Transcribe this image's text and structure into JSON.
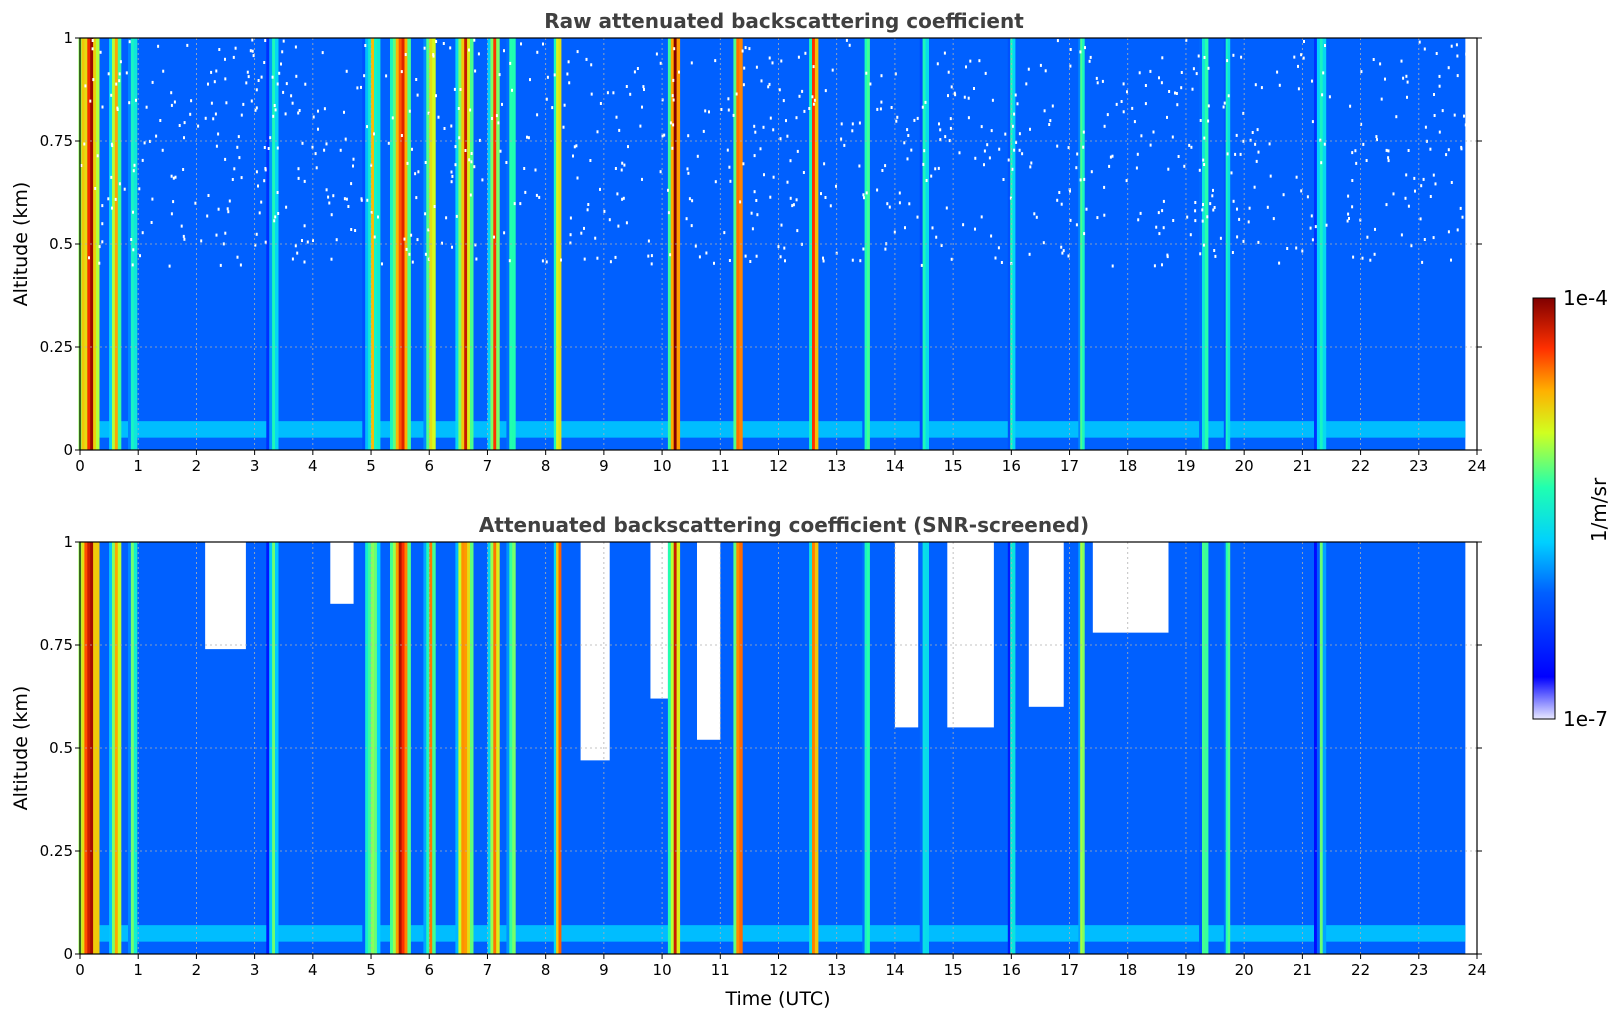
{
  "chart_data": [
    {
      "type": "heatmap",
      "title": "Raw attenuated backscattering coefficient",
      "xlabel": "",
      "ylabel": "Altitude (km)",
      "xlim": [
        0,
        24
      ],
      "ylim": [
        0,
        1
      ],
      "x_ticks": [
        "0",
        "1",
        "2",
        "3",
        "4",
        "5",
        "6",
        "7",
        "8",
        "9",
        "10",
        "11",
        "12",
        "13",
        "14",
        "15",
        "16",
        "17",
        "18",
        "19",
        "20",
        "21",
        "22",
        "23",
        "24"
      ],
      "y_ticks": [
        "0",
        "0.25",
        "0.5",
        "0.75",
        "1"
      ],
      "grid": true,
      "data_end_time": 23.8,
      "colorscale": "jet",
      "background_log10": -6.1,
      "cloud_columns": [
        {
          "t": 0.15,
          "w": 0.35,
          "v": -4.1
        },
        {
          "t": 0.6,
          "w": 0.2,
          "v": -4.5
        },
        {
          "t": 0.9,
          "w": 0.15,
          "v": -5.0
        },
        {
          "t": 3.3,
          "w": 0.2,
          "v": -5.2
        },
        {
          "t": 5.0,
          "w": 0.3,
          "v": -4.9
        },
        {
          "t": 5.5,
          "w": 0.35,
          "v": -4.2
        },
        {
          "t": 6.0,
          "w": 0.2,
          "v": -4.6
        },
        {
          "t": 6.6,
          "w": 0.3,
          "v": -4.4
        },
        {
          "t": 7.1,
          "w": 0.2,
          "v": -4.5
        },
        {
          "t": 7.4,
          "w": 0.15,
          "v": -4.8
        },
        {
          "t": 8.2,
          "w": 0.12,
          "v": -4.3
        },
        {
          "t": 10.2,
          "w": 0.2,
          "v": -4.2
        },
        {
          "t": 11.3,
          "w": 0.15,
          "v": -4.2
        },
        {
          "t": 12.6,
          "w": 0.15,
          "v": -4.2
        },
        {
          "t": 13.5,
          "w": 0.12,
          "v": -4.8
        },
        {
          "t": 14.5,
          "w": 0.15,
          "v": -5.1
        },
        {
          "t": 16.0,
          "w": 0.12,
          "v": -5.2
        },
        {
          "t": 17.2,
          "w": 0.1,
          "v": -4.8
        },
        {
          "t": 19.3,
          "w": 0.15,
          "v": -5.1
        },
        {
          "t": 19.7,
          "w": 0.1,
          "v": -5.0
        },
        {
          "t": 21.3,
          "w": 0.2,
          "v": -5.3
        }
      ]
    },
    {
      "type": "heatmap",
      "title": "Attenuated backscattering coefficient (SNR-screened)",
      "xlabel": "Time (UTC)",
      "ylabel": "Altitude (km)",
      "xlim": [
        0,
        24
      ],
      "ylim": [
        0,
        1
      ],
      "x_ticks": [
        "0",
        "1",
        "2",
        "3",
        "4",
        "5",
        "6",
        "7",
        "8",
        "9",
        "10",
        "11",
        "12",
        "13",
        "14",
        "15",
        "16",
        "17",
        "18",
        "19",
        "20",
        "21",
        "22",
        "23",
        "24"
      ],
      "y_ticks": [
        "0",
        "0.25",
        "0.5",
        "0.75",
        "1"
      ],
      "grid": true,
      "data_end_time": 23.8,
      "colorscale": "jet",
      "background_log10": -6.1,
      "screened_gaps": [
        {
          "t0": 2.15,
          "t1": 2.85,
          "z": 0.74
        },
        {
          "t0": 4.3,
          "t1": 4.7,
          "z": 0.85
        },
        {
          "t0": 8.6,
          "t1": 9.1,
          "z": 0.47
        },
        {
          "t0": 9.8,
          "t1": 10.1,
          "z": 0.62
        },
        {
          "t0": 10.6,
          "t1": 11.0,
          "z": 0.52
        },
        {
          "t0": 14.0,
          "t1": 14.4,
          "z": 0.55
        },
        {
          "t0": 14.9,
          "t1": 15.7,
          "z": 0.55
        },
        {
          "t0": 16.3,
          "t1": 16.9,
          "z": 0.6
        },
        {
          "t0": 17.4,
          "t1": 18.7,
          "z": 0.78
        }
      ]
    }
  ],
  "colorbar": {
    "label": "1/m/sr",
    "max_label": "1e-4",
    "min_label": "1e-7",
    "vmin_log10": -7,
    "vmax_log10": -4
  }
}
